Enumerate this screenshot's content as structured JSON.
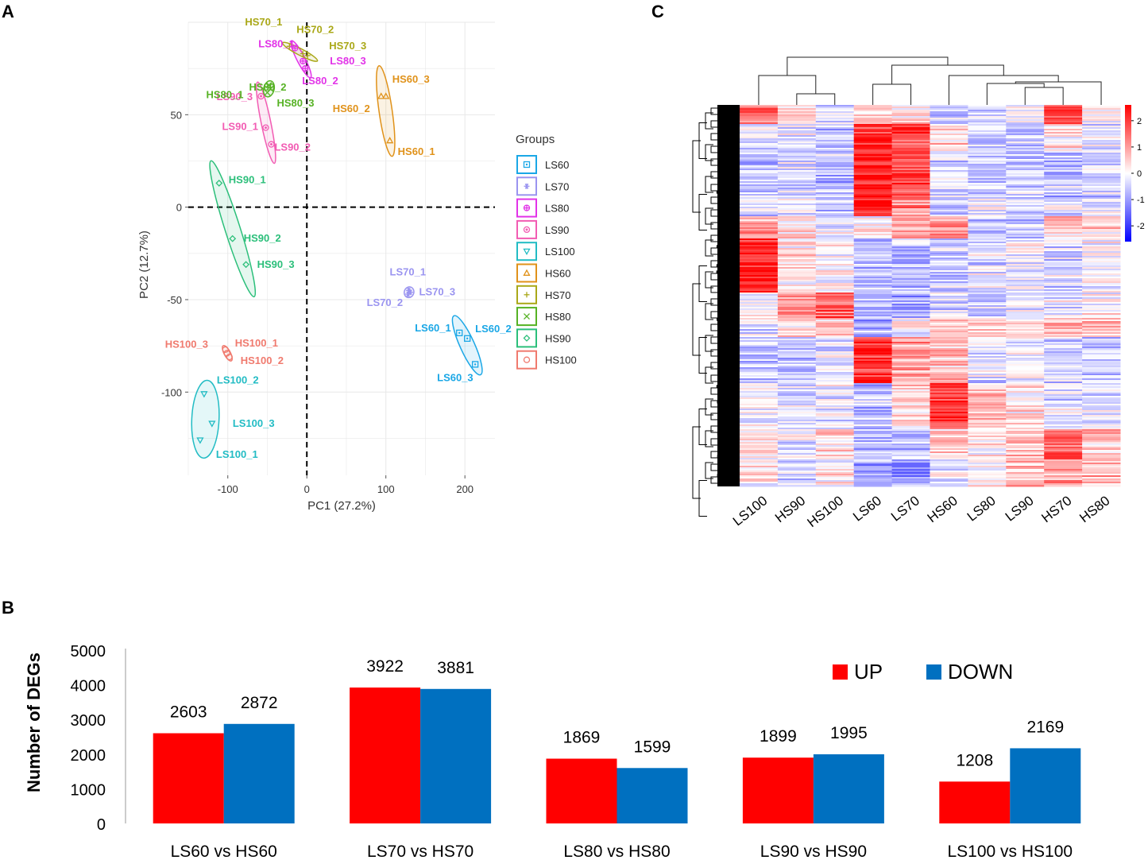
{
  "panel_labels": {
    "a": "A",
    "b": "B",
    "c": "C"
  },
  "chart_data": [
    {
      "type": "scatter",
      "panel": "A",
      "xlabel": "PC1 (27.2%)",
      "ylabel": "PC2 (12.7%)",
      "xlim": [
        -150,
        238
      ],
      "ylim": [
        -145,
        100
      ],
      "xticks": [
        -100,
        0,
        100,
        200
      ],
      "yticks": [
        50,
        0,
        -50,
        -100
      ],
      "grid": true,
      "legend_title": "Groups",
      "groups": [
        {
          "name": "LS60",
          "symbol": "square-dot",
          "color": "#1aa7e6"
        },
        {
          "name": "LS70",
          "symbol": "asterisk",
          "color": "#9a94f0"
        },
        {
          "name": "LS80",
          "symbol": "cross-circle",
          "color": "#e233e8"
        },
        {
          "name": "LS90",
          "symbol": "dot-circle",
          "color": "#f25cb3"
        },
        {
          "name": "LS100",
          "symbol": "triangle-down",
          "color": "#22bcc4"
        },
        {
          "name": "HS60",
          "symbol": "triangle-up",
          "color": "#e0921a"
        },
        {
          "name": "HS70",
          "symbol": "plus",
          "color": "#aaa818"
        },
        {
          "name": "HS80",
          "symbol": "x",
          "color": "#56b224"
        },
        {
          "name": "HS90",
          "symbol": "diamond",
          "color": "#2bbf7a"
        },
        {
          "name": "HS100",
          "symbol": "circle",
          "color": "#f07a6e"
        }
      ],
      "points": [
        {
          "label": "LS60_1",
          "group": "LS60",
          "x": 193,
          "y": -68
        },
        {
          "label": "LS60_2",
          "group": "LS60",
          "x": 203,
          "y": -71
        },
        {
          "label": "LS60_3",
          "group": "LS60",
          "x": 213,
          "y": -85
        },
        {
          "label": "LS70_1",
          "group": "LS70",
          "x": 129,
          "y": -45
        },
        {
          "label": "LS70_2",
          "group": "LS70",
          "x": 128,
          "y": -47
        },
        {
          "label": "LS70_3",
          "group": "LS70",
          "x": 131,
          "y": -46
        },
        {
          "label": "LS80_1",
          "group": "LS80",
          "x": -15,
          "y": 86
        },
        {
          "label": "LS80_2",
          "group": "LS80",
          "x": -2,
          "y": 75
        },
        {
          "label": "LS80_3",
          "group": "LS80",
          "x": -5,
          "y": 79
        },
        {
          "label": "LS90_1",
          "group": "LS90",
          "x": -52,
          "y": 43
        },
        {
          "label": "LS90_2",
          "group": "LS90",
          "x": -45,
          "y": 34
        },
        {
          "label": "LS90_3",
          "group": "LS90",
          "x": -58,
          "y": 60
        },
        {
          "label": "LS100_1",
          "group": "LS100",
          "x": -135,
          "y": -126
        },
        {
          "label": "LS100_2",
          "group": "LS100",
          "x": -130,
          "y": -101
        },
        {
          "label": "LS100_3",
          "group": "LS100",
          "x": -120,
          "y": -117
        },
        {
          "label": "HS60_1",
          "group": "HS60",
          "x": 105,
          "y": 36
        },
        {
          "label": "HS60_2",
          "group": "HS60",
          "x": 94,
          "y": 60
        },
        {
          "label": "HS60_3",
          "group": "HS60",
          "x": 100,
          "y": 60
        },
        {
          "label": "HS70_1",
          "group": "HS70",
          "x": -22,
          "y": 87
        },
        {
          "label": "HS70_2",
          "group": "HS70",
          "x": -5,
          "y": 83
        },
        {
          "label": "HS70_3",
          "group": "HS70",
          "x": 1,
          "y": 82
        },
        {
          "label": "HS80_1",
          "group": "HS80",
          "x": -50,
          "y": 62
        },
        {
          "label": "HS80_2",
          "group": "HS80",
          "x": -48,
          "y": 66
        },
        {
          "label": "HS80_3",
          "group": "HS80",
          "x": -46,
          "y": 64
        },
        {
          "label": "HS90_1",
          "group": "HS90",
          "x": -111,
          "y": 13
        },
        {
          "label": "HS90_2",
          "group": "HS90",
          "x": -94,
          "y": -17
        },
        {
          "label": "HS90_3",
          "group": "HS90",
          "x": -77,
          "y": -31
        },
        {
          "label": "HS100_1",
          "group": "HS100",
          "x": -103,
          "y": -77
        },
        {
          "label": "HS100_2",
          "group": "HS100",
          "x": -98,
          "y": -81
        },
        {
          "label": "HS100_3",
          "group": "HS100",
          "x": -101,
          "y": -79
        }
      ]
    },
    {
      "type": "heatmap",
      "panel": "C",
      "columns": [
        "LS100",
        "HS90",
        "HS100",
        "LS60",
        "LS70",
        "HS60",
        "LS80",
        "LS90",
        "HS70",
        "HS80"
      ],
      "scale_ticks": [
        2,
        1,
        0,
        -1,
        -2
      ],
      "scale_range": [
        -2.6,
        2.6
      ],
      "colors": {
        "low": "#0000ff",
        "mid": "#ffffff",
        "high": "#ff0000"
      },
      "blocks": [
        {
          "rows": 0.05,
          "values": [
            1.6,
            0.2,
            -0.3,
            0.6,
            0.4,
            -0.4,
            -0.5,
            -0.2,
            1.8,
            0.3
          ]
        },
        {
          "rows": 0.07,
          "values": [
            -0.3,
            -0.2,
            -0.5,
            2.0,
            1.9,
            0.4,
            -0.5,
            -0.6,
            0.3,
            -0.2
          ]
        },
        {
          "rows": 0.12,
          "values": [
            -0.6,
            -0.3,
            -0.6,
            2.2,
            1.8,
            -0.4,
            -0.4,
            -0.5,
            -0.6,
            -0.5
          ]
        },
        {
          "rows": 0.05,
          "values": [
            -0.4,
            -0.2,
            -0.5,
            2.3,
            1.2,
            -0.7,
            -0.2,
            -0.4,
            -0.1,
            -0.3
          ]
        },
        {
          "rows": 0.06,
          "values": [
            0.9,
            0.2,
            -0.2,
            0.2,
            0.9,
            1.0,
            -0.6,
            -0.4,
            0.6,
            0.4
          ]
        },
        {
          "rows": 0.14,
          "values": [
            2.2,
            0.3,
            0.1,
            -0.7,
            -0.6,
            -0.5,
            -0.3,
            -0.2,
            -0.4,
            0.0
          ]
        },
        {
          "rows": 0.07,
          "values": [
            0.1,
            1.1,
            1.6,
            -0.7,
            -0.9,
            -0.4,
            -0.5,
            -0.3,
            -0.2,
            0.1
          ]
        },
        {
          "rows": 0.05,
          "values": [
            -0.2,
            0.4,
            0.5,
            -0.8,
            0.1,
            0.2,
            0.5,
            0.3,
            0.8,
            0.9
          ]
        },
        {
          "rows": 0.12,
          "values": [
            -0.5,
            -0.4,
            -0.3,
            2.0,
            0.9,
            0.6,
            -0.3,
            -0.2,
            -0.4,
            -0.5
          ]
        },
        {
          "rows": 0.12,
          "values": [
            -0.2,
            -0.4,
            -0.3,
            -0.6,
            0.3,
            1.9,
            0.5,
            0.2,
            -0.2,
            -0.3
          ]
        },
        {
          "rows": 0.08,
          "values": [
            0.2,
            -0.2,
            0.3,
            -0.5,
            -0.6,
            0.5,
            0.1,
            0.7,
            1.7,
            0.6
          ]
        },
        {
          "rows": 0.07,
          "values": [
            0.3,
            -0.3,
            0.2,
            -0.9,
            -1.1,
            -0.2,
            0.4,
            0.6,
            0.9,
            0.7
          ]
        }
      ]
    },
    {
      "type": "bar",
      "panel": "B",
      "categories": [
        "LS60 vs HS60",
        "LS70 vs HS70",
        "LS80 vs HS80",
        "LS90 vs HS90",
        "LS100 vs HS100"
      ],
      "series": [
        {
          "name": "UP",
          "color": "#ff0000",
          "values": [
            2603,
            3922,
            1869,
            1899,
            1208
          ]
        },
        {
          "name": "DOWN",
          "color": "#0070c0",
          "values": [
            2872,
            3881,
            1599,
            1995,
            2169
          ]
        }
      ],
      "ylabel": "Number of DEGs",
      "ylim": [
        0,
        5000
      ],
      "yticks": [
        0,
        1000,
        2000,
        3000,
        4000,
        5000
      ],
      "legend_position": "top-right"
    }
  ]
}
